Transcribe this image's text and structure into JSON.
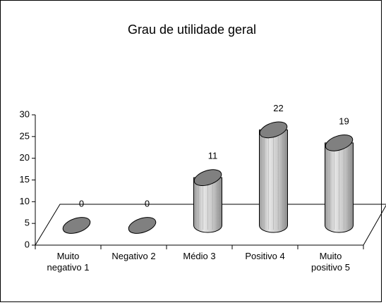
{
  "chart_data": {
    "type": "bar",
    "title": "Grau de utilidade geral",
    "categories": [
      "Muito negativo 1",
      "Negativo 2",
      "Médio 3",
      "Positivo 4",
      "Muito positivo 5"
    ],
    "values": [
      0,
      0,
      11,
      22,
      19
    ],
    "color": "#b8b8b8",
    "ylim": [
      0,
      30
    ],
    "yticks": [
      0,
      5,
      10,
      15,
      20,
      25,
      30
    ]
  }
}
